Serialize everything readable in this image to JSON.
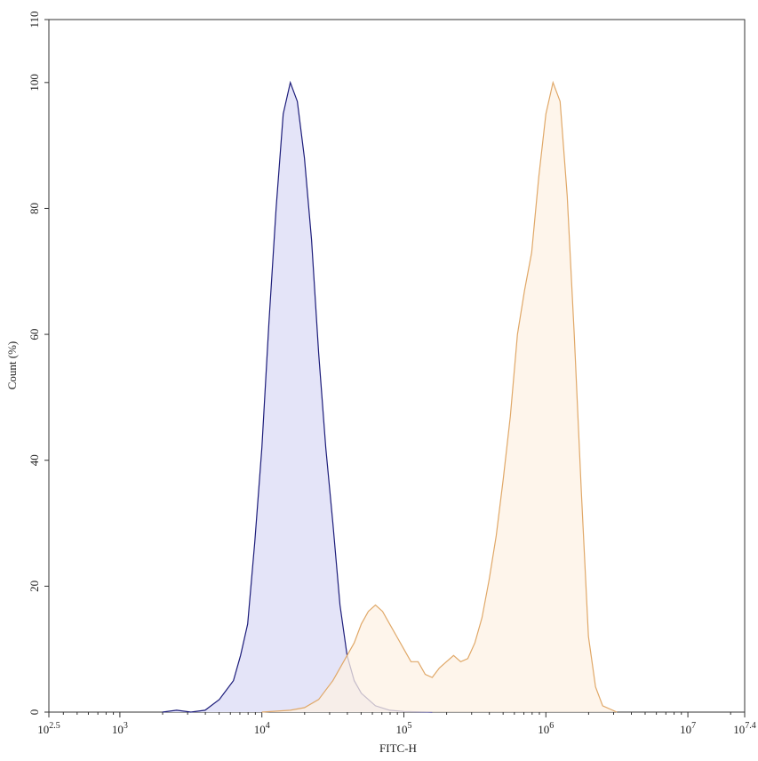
{
  "chart_data": {
    "type": "histogram-overlay",
    "x_label": "FITC-H",
    "y_label": "Count (%)",
    "log_x": true,
    "xlim": [
      316.2278,
      25118864
    ],
    "xticks": [
      {
        "value": 316.2278,
        "label": "10",
        "exponent": "2.5"
      },
      {
        "value": 1000,
        "label": "10",
        "exponent": "3"
      },
      {
        "value": 10000,
        "label": "10",
        "exponent": "4"
      },
      {
        "value": 100000,
        "label": "10",
        "exponent": "5"
      },
      {
        "value": 1000000,
        "label": "10",
        "exponent": "6"
      },
      {
        "value": 10000000,
        "label": "10",
        "exponent": "7"
      },
      {
        "value": 25118864,
        "label": "10",
        "exponent": "7.4"
      }
    ],
    "ylim": [
      0,
      110
    ],
    "yticks": [
      0,
      20,
      40,
      60,
      80,
      100,
      110
    ],
    "series": [
      {
        "color": "#1c1c7a",
        "fill": "#e4e4f8",
        "x": [
          1995,
          2512,
          3162,
          3981,
          5012,
          6310,
          7079,
          7943,
          8913,
          10000,
          11220,
          12589,
          14125,
          15849,
          17783,
          19953,
          22387,
          25119,
          28184,
          31623,
          35481,
          39811,
          44668,
          50119,
          63096,
          79433,
          100000,
          158489
        ],
        "values": [
          0,
          0.3,
          0,
          0.3,
          2,
          5,
          9,
          14,
          27,
          42,
          62,
          80,
          95,
          100,
          97,
          88,
          75,
          57,
          42,
          30,
          17,
          9,
          5,
          3,
          1,
          0.3,
          0.1,
          0
        ]
      },
      {
        "color": "#e0a868",
        "fill": "#fdf1e4",
        "x": [
          10000,
          15849,
          19953,
          25119,
          31623,
          39811,
          44668,
          50119,
          56234,
          63096,
          70795,
          79433,
          89125,
          100000,
          112202,
          125893,
          141254,
          158489,
          177828,
          199526,
          223872,
          251189,
          281838,
          316228,
          354813,
          398107,
          446684,
          501187,
          562341,
          630957,
          707946,
          794328,
          891251,
          1000000,
          1122018,
          1258925,
          1412538,
          1584893,
          1778279,
          1995262,
          2238721,
          2511886,
          3162278
        ],
        "values": [
          0,
          0.3,
          0.7,
          2,
          5,
          9,
          11,
          14,
          16,
          17,
          16,
          14,
          12,
          10,
          8,
          8,
          6,
          5.5,
          7,
          8,
          9,
          8,
          8.5,
          11,
          15,
          21,
          28,
          37,
          47,
          60,
          67,
          73,
          85,
          95,
          100,
          97,
          82,
          60,
          35,
          12,
          4,
          1,
          0
        ]
      }
    ]
  }
}
